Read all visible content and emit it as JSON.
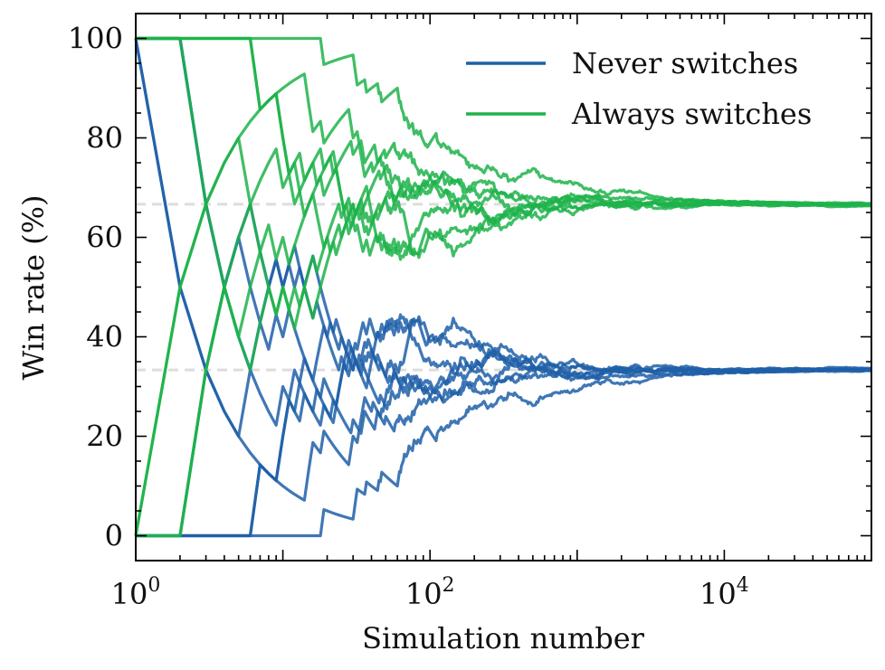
{
  "chart_data": {
    "type": "line",
    "title": "",
    "xlabel": "Simulation number",
    "ylabel": "Win rate (%)",
    "xscale": "log",
    "xlim": [
      1,
      100000
    ],
    "ylim": [
      -5,
      105
    ],
    "grid": false,
    "legend_position": "top-right",
    "x_ticks": [
      {
        "value": 1,
        "base": "10",
        "exp": "0"
      },
      {
        "value": 100,
        "base": "10",
        "exp": "2"
      },
      {
        "value": 10000,
        "base": "10",
        "exp": "4"
      }
    ],
    "y_ticks": [
      0,
      20,
      40,
      60,
      80,
      100
    ],
    "reference_lines": [
      33.33,
      66.67
    ],
    "runs": 8,
    "series": [
      {
        "name": "Never switches",
        "color": "#1f5fa8",
        "converges_to": 33.33
      },
      {
        "name": "Always switches",
        "color": "#1db34a",
        "converges_to": 66.67
      }
    ]
  }
}
